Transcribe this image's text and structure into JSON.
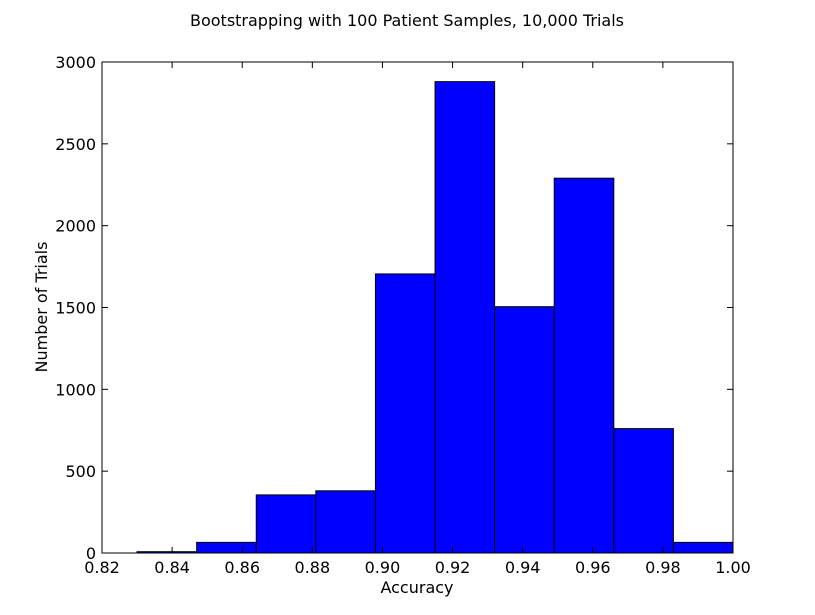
{
  "chart_data": {
    "type": "bar",
    "title": "Bootstrapping with 100 Patient Samples, 10,000 Trials",
    "xlabel": "Accuracy",
    "ylabel": "Number of Trials",
    "xlim": [
      0.82,
      1.0
    ],
    "ylim": [
      0,
      3000
    ],
    "xticks": [
      "0.82",
      "0.84",
      "0.86",
      "0.88",
      "0.90",
      "0.92",
      "0.94",
      "0.96",
      "0.98",
      "1.00"
    ],
    "yticks": [
      "0",
      "500",
      "1000",
      "1500",
      "2000",
      "2500",
      "3000"
    ],
    "grid": false,
    "bar_color": "#0000ff",
    "edge_color": "#000000",
    "bins": [
      {
        "x0": 0.83,
        "x1": 0.847,
        "value": 8
      },
      {
        "x0": 0.847,
        "x1": 0.864,
        "value": 65
      },
      {
        "x0": 0.864,
        "x1": 0.881,
        "value": 355
      },
      {
        "x0": 0.881,
        "x1": 0.898,
        "value": 380
      },
      {
        "x0": 0.898,
        "x1": 0.915,
        "value": 1705
      },
      {
        "x0": 0.915,
        "x1": 0.932,
        "value": 2880
      },
      {
        "x0": 0.932,
        "x1": 0.949,
        "value": 1505
      },
      {
        "x0": 0.949,
        "x1": 0.966,
        "value": 2290
      },
      {
        "x0": 0.966,
        "x1": 0.983,
        "value": 760
      },
      {
        "x0": 0.983,
        "x1": 1.0,
        "value": 65
      }
    ]
  }
}
